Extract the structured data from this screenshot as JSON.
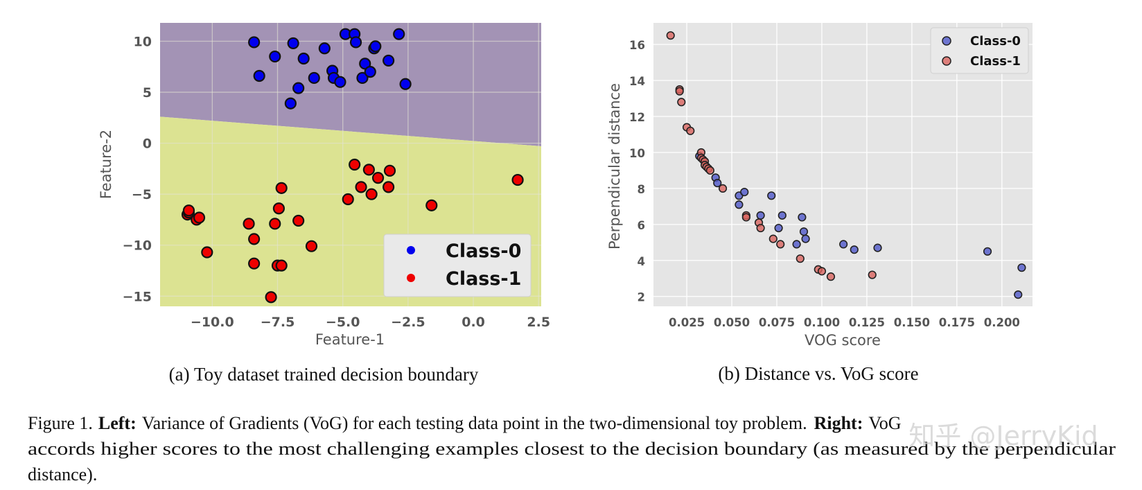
{
  "chart_data": [
    {
      "type": "scatter",
      "subtitle": "(a) Toy dataset trained decision boundary",
      "xlabel": "Feature-1",
      "ylabel": "Feature-2",
      "xlim": [
        -12,
        2.6
      ],
      "ylim": [
        -16,
        11.8
      ],
      "xticks": [
        -10.0,
        -7.5,
        -5.0,
        -2.5,
        0.0,
        2.5
      ],
      "xtick_labels": [
        "−10.0",
        "−7.5",
        "−5.0",
        "−2.5",
        "0.0",
        "2.5"
      ],
      "yticks": [
        -15,
        -10,
        -5,
        0,
        5,
        10
      ],
      "ytick_labels": [
        "−15",
        "−10",
        "−5",
        "0",
        "5",
        "10"
      ],
      "grid": true,
      "legend_position": "lower-right",
      "decision_boundary": {
        "x": [
          -12,
          2.6
        ],
        "y": [
          2.6,
          -0.3
        ]
      },
      "region_colors": {
        "above": "#a393b5",
        "below": "#dce392"
      },
      "series": [
        {
          "name": "Class-0",
          "color": "#0000ee",
          "points": [
            [
              -8.4,
              9.9
            ],
            [
              -8.2,
              6.6
            ],
            [
              -7.6,
              8.5
            ],
            [
              -7.0,
              3.9
            ],
            [
              -6.9,
              9.8
            ],
            [
              -6.7,
              5.4
            ],
            [
              -6.5,
              8.3
            ],
            [
              -6.1,
              6.4
            ],
            [
              -5.7,
              9.3
            ],
            [
              -5.4,
              7.1
            ],
            [
              -5.35,
              6.4
            ],
            [
              -5.1,
              6.0
            ],
            [
              -4.9,
              10.7
            ],
            [
              -4.55,
              10.7
            ],
            [
              -4.5,
              9.9
            ],
            [
              -4.25,
              6.4
            ],
            [
              -4.15,
              7.8
            ],
            [
              -3.95,
              7.0
            ],
            [
              -3.8,
              9.3
            ],
            [
              -3.75,
              9.5
            ],
            [
              -3.25,
              8.1
            ],
            [
              -2.85,
              10.7
            ],
            [
              -2.6,
              5.8
            ]
          ]
        },
        {
          "name": "Class-1",
          "color": "#ee0000",
          "points": [
            [
              -10.95,
              -7.0
            ],
            [
              -10.9,
              -6.8
            ],
            [
              -10.9,
              -6.6
            ],
            [
              -10.6,
              -7.5
            ],
            [
              -10.5,
              -7.3
            ],
            [
              -10.2,
              -10.7
            ],
            [
              -8.6,
              -7.9
            ],
            [
              -8.4,
              -9.4
            ],
            [
              -8.4,
              -11.8
            ],
            [
              -7.75,
              -15.1
            ],
            [
              -7.6,
              -7.9
            ],
            [
              -7.5,
              -12.0
            ],
            [
              -7.45,
              -6.4
            ],
            [
              -7.35,
              -4.4
            ],
            [
              -7.35,
              -12.0
            ],
            [
              -6.7,
              -7.6
            ],
            [
              -6.2,
              -10.1
            ],
            [
              -4.8,
              -5.5
            ],
            [
              -4.55,
              -2.1
            ],
            [
              -4.3,
              -4.3
            ],
            [
              -4.0,
              -2.6
            ],
            [
              -3.9,
              -5.0
            ],
            [
              -3.65,
              -3.4
            ],
            [
              -3.25,
              -4.3
            ],
            [
              -3.2,
              -2.7
            ],
            [
              -1.6,
              -6.1
            ],
            [
              1.7,
              -3.6
            ]
          ]
        }
      ]
    },
    {
      "type": "scatter",
      "subtitle": "(b) Distance vs. VoG score",
      "xlabel": "VOG score",
      "ylabel": "Perpendicular distance",
      "xlim": [
        0.0065,
        0.217
      ],
      "ylim": [
        1.45,
        17.2
      ],
      "xticks": [
        0.025,
        0.05,
        0.075,
        0.1,
        0.125,
        0.15,
        0.175,
        0.2
      ],
      "xtick_labels": [
        "0.025",
        "0.050",
        "0.075",
        "0.100",
        "0.125",
        "0.150",
        "0.175",
        "0.200"
      ],
      "yticks": [
        2,
        4,
        6,
        8,
        10,
        12,
        14,
        16
      ],
      "ytick_labels": [
        "2",
        "4",
        "6",
        "8",
        "10",
        "12",
        "14",
        "16"
      ],
      "grid": true,
      "legend_position": "top-right",
      "series": [
        {
          "name": "Class-0",
          "color": "#4f58c9",
          "points": [
            [
              0.032,
              9.8
            ],
            [
              0.041,
              8.6
            ],
            [
              0.042,
              8.3
            ],
            [
              0.054,
              7.6
            ],
            [
              0.054,
              7.1
            ],
            [
              0.057,
              7.8
            ],
            [
              0.066,
              6.5
            ],
            [
              0.072,
              7.6
            ],
            [
              0.076,
              5.8
            ],
            [
              0.078,
              6.5
            ],
            [
              0.086,
              4.9
            ],
            [
              0.089,
              6.4
            ],
            [
              0.09,
              5.6
            ],
            [
              0.091,
              5.2
            ],
            [
              0.112,
              4.9
            ],
            [
              0.118,
              4.6
            ],
            [
              0.131,
              4.7
            ],
            [
              0.192,
              4.5
            ],
            [
              0.209,
              2.1
            ],
            [
              0.211,
              3.6
            ]
          ]
        },
        {
          "name": "Class-1",
          "color": "#d9645f",
          "points": [
            [
              0.016,
              16.5
            ],
            [
              0.021,
              13.5
            ],
            [
              0.021,
              13.4
            ],
            [
              0.022,
              12.8
            ],
            [
              0.025,
              11.4
            ],
            [
              0.027,
              11.2
            ],
            [
              0.033,
              10.0
            ],
            [
              0.033,
              9.7
            ],
            [
              0.034,
              9.6
            ],
            [
              0.035,
              9.5
            ],
            [
              0.035,
              9.3
            ],
            [
              0.036,
              9.2
            ],
            [
              0.037,
              9.1
            ],
            [
              0.038,
              9.0
            ],
            [
              0.045,
              8.0
            ],
            [
              0.058,
              6.5
            ],
            [
              0.058,
              6.4
            ],
            [
              0.065,
              6.1
            ],
            [
              0.066,
              5.8
            ],
            [
              0.073,
              5.2
            ],
            [
              0.077,
              4.9
            ],
            [
              0.088,
              4.1
            ],
            [
              0.098,
              3.5
            ],
            [
              0.1,
              3.4
            ],
            [
              0.105,
              3.1
            ],
            [
              0.128,
              3.2
            ]
          ]
        }
      ]
    }
  ],
  "caption": {
    "figure_label": "Figure 1.",
    "left_label": "Left:",
    "left_text": "Variance of Gradients (VoG) for each testing data point in the two-dimensional toy problem.",
    "right_label": "Right:",
    "right_text_1": "VoG",
    "line2": "accords higher scores to the most challenging examples closest to the decision boundary (as measured by the perpendicular",
    "line3": "distance)."
  },
  "watermark": "知乎 @JerryKid"
}
